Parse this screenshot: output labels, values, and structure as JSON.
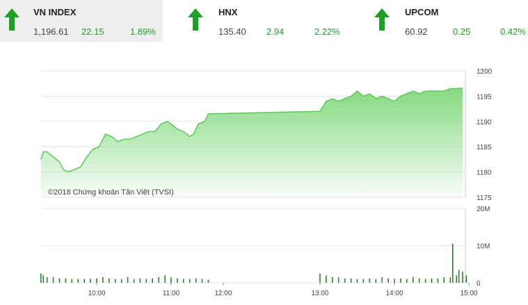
{
  "indices": [
    {
      "name": "VN INDEX",
      "price": "1,196.61",
      "change": "22.15",
      "percent": "1.89%",
      "direction": "up"
    },
    {
      "name": "HNX",
      "price": "135.40",
      "change": "2.94",
      "percent": "2.22%",
      "direction": "up"
    },
    {
      "name": "UPCOM",
      "price": "60.92",
      "change": "0.25",
      "percent": "0.42%",
      "direction": "up"
    }
  ],
  "colors": {
    "up": "#1ea024",
    "area": "#7ed87a",
    "line": "#5cc85a",
    "volume": "#2e7d32"
  },
  "copyright": "©2018 Chứng khoán Tân Việt (TVSI)",
  "chart_data": [
    {
      "type": "area",
      "ylim": [
        1175,
        1200
      ],
      "yticks": [
        "1200",
        "1195",
        "1190",
        "1185",
        "1180",
        "1175"
      ],
      "x_start": "09:15",
      "x_end": "15:00",
      "grid": true,
      "series": [
        {
          "points": [
            [
              "09:15",
              1182.5
            ],
            [
              "09:17",
              1184
            ],
            [
              "09:20",
              1184
            ],
            [
              "09:25",
              1183
            ],
            [
              "09:30",
              1182
            ],
            [
              "09:33",
              1180.5
            ],
            [
              "09:37",
              1180
            ],
            [
              "09:42",
              1180.5
            ],
            [
              "09:47",
              1181
            ],
            [
              "09:52",
              1183
            ],
            [
              "09:57",
              1184.5
            ],
            [
              "10:02",
              1185
            ],
            [
              "10:07",
              1187.5
            ],
            [
              "10:12",
              1187
            ],
            [
              "10:17",
              1186
            ],
            [
              "10:22",
              1186.5
            ],
            [
              "10:27",
              1186.5
            ],
            [
              "10:32",
              1187
            ],
            [
              "10:37",
              1187.5
            ],
            [
              "10:42",
              1188
            ],
            [
              "10:47",
              1188
            ],
            [
              "10:52",
              1189.5
            ],
            [
              "10:57",
              1190
            ],
            [
              "11:00",
              1189.5
            ],
            [
              "11:05",
              1188.5
            ],
            [
              "11:10",
              1188
            ],
            [
              "11:15",
              1187
            ],
            [
              "11:18",
              1187.5
            ],
            [
              "11:22",
              1189.5
            ],
            [
              "11:27",
              1190
            ],
            [
              "11:30",
              1191.5
            ],
            [
              "13:00",
              1192
            ],
            [
              "13:05",
              1194
            ],
            [
              "13:10",
              1194.5
            ],
            [
              "13:15",
              1194
            ],
            [
              "13:20",
              1194.5
            ],
            [
              "13:25",
              1195
            ],
            [
              "13:30",
              1196
            ],
            [
              "13:35",
              1195
            ],
            [
              "13:40",
              1195.5
            ],
            [
              "13:45",
              1194.5
            ],
            [
              "13:50",
              1195
            ],
            [
              "13:55",
              1194.5
            ],
            [
              "14:00",
              1194
            ],
            [
              "14:05",
              1195
            ],
            [
              "14:10",
              1195.5
            ],
            [
              "14:15",
              1196
            ],
            [
              "14:20",
              1195.5
            ],
            [
              "14:25",
              1196
            ],
            [
              "14:30",
              1196
            ],
            [
              "14:35",
              1196
            ],
            [
              "14:40",
              1196
            ],
            [
              "14:45",
              1196.5
            ],
            [
              "14:50",
              1196.5
            ],
            [
              "14:55",
              1196.6
            ]
          ]
        }
      ]
    },
    {
      "type": "bar",
      "ylim": [
        0,
        20
      ],
      "yunit": "M",
      "yticks": [
        "20M",
        "10M",
        "0"
      ],
      "xticks": [
        "10:00",
        "11:00",
        "12:00",
        "13:00",
        "14:00",
        "15:00"
      ],
      "grid": true,
      "series": [
        {
          "points": [
            [
              "09:15",
              2.5
            ],
            [
              "09:17",
              2
            ],
            [
              "09:20",
              1.5
            ],
            [
              "09:25",
              1.5
            ],
            [
              "09:30",
              1.2
            ],
            [
              "09:35",
              1.2
            ],
            [
              "09:40",
              1
            ],
            [
              "09:45",
              1
            ],
            [
              "09:50",
              1
            ],
            [
              "09:55",
              1
            ],
            [
              "10:00",
              1.2
            ],
            [
              "10:05",
              1.5
            ],
            [
              "10:10",
              1.2
            ],
            [
              "10:15",
              1
            ],
            [
              "10:20",
              1
            ],
            [
              "10:25",
              1.5
            ],
            [
              "10:30",
              1
            ],
            [
              "10:35",
              1.2
            ],
            [
              "10:40",
              1
            ],
            [
              "10:45",
              1.2
            ],
            [
              "10:50",
              1.5
            ],
            [
              "10:55",
              2
            ],
            [
              "11:00",
              1.5
            ],
            [
              "11:05",
              1.2
            ],
            [
              "11:10",
              1
            ],
            [
              "11:15",
              1
            ],
            [
              "11:20",
              1.2
            ],
            [
              "11:25",
              1
            ],
            [
              "11:30",
              0.8
            ],
            [
              "13:00",
              2.5
            ],
            [
              "13:05",
              2
            ],
            [
              "13:10",
              1.5
            ],
            [
              "13:15",
              1.5
            ],
            [
              "13:20",
              1.2
            ],
            [
              "13:25",
              1.2
            ],
            [
              "13:30",
              1
            ],
            [
              "13:35",
              1
            ],
            [
              "13:40",
              1.2
            ],
            [
              "13:45",
              1
            ],
            [
              "13:50",
              1.5
            ],
            [
              "13:55",
              1.2
            ],
            [
              "14:00",
              1
            ],
            [
              "14:05",
              1.2
            ],
            [
              "14:10",
              1
            ],
            [
              "14:15",
              1.5
            ],
            [
              "14:20",
              1.2
            ],
            [
              "14:25",
              1
            ],
            [
              "14:30",
              1.2
            ],
            [
              "14:35",
              1.2
            ],
            [
              "14:40",
              1.5
            ],
            [
              "14:45",
              1.5
            ],
            [
              "14:47",
              10.5
            ],
            [
              "14:50",
              2
            ],
            [
              "14:52",
              3.5
            ],
            [
              "14:55",
              3
            ],
            [
              "14:58",
              2
            ]
          ]
        }
      ]
    }
  ]
}
